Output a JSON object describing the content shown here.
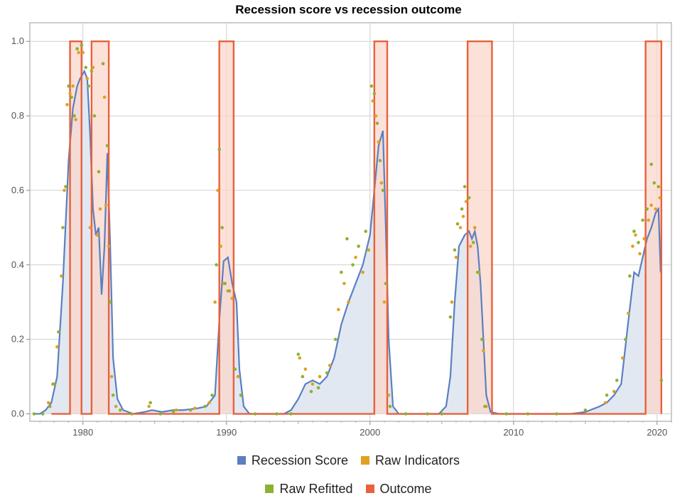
{
  "chart_data": {
    "type": "line",
    "title": "Recession score vs recession outcome",
    "xlabel": "",
    "ylabel": "",
    "xlim": [
      1976.3,
      2021.0
    ],
    "ylim": [
      -0.02,
      1.05
    ],
    "x_ticks": [
      1980,
      1990,
      2000,
      2010,
      2020
    ],
    "y_ticks": [
      0.0,
      0.2,
      0.4,
      0.6,
      0.8,
      1.0
    ],
    "x_tick_labels": [
      "1980",
      "1990",
      "2000",
      "2010",
      "2020"
    ],
    "y_tick_labels": [
      "0.0",
      "0.2",
      "0.4",
      "0.6",
      "0.8",
      "1.0"
    ],
    "grid": true,
    "legend_position": "bottom",
    "colors": {
      "score": "#5b7fc0",
      "score_fill": "#dfe5ef",
      "indicators": "#e0a020",
      "refitted": "#8db230",
      "outcome": "#e8613c",
      "outcome_fill": "#f9d7cb"
    },
    "legend": [
      [
        "Recession Score",
        "Raw Indicators"
      ],
      [
        "Raw Refitted",
        "Outcome"
      ]
    ],
    "series": [
      {
        "name": "Recession Score",
        "kind": "line-filled",
        "points": [
          [
            1976.6,
            0.0
          ],
          [
            1977.0,
            0.0
          ],
          [
            1977.4,
            0.01
          ],
          [
            1977.8,
            0.03
          ],
          [
            1978.2,
            0.1
          ],
          [
            1978.6,
            0.35
          ],
          [
            1979.0,
            0.68
          ],
          [
            1979.3,
            0.82
          ],
          [
            1979.6,
            0.88
          ],
          [
            1979.8,
            0.9
          ],
          [
            1980.1,
            0.92
          ],
          [
            1980.3,
            0.9
          ],
          [
            1980.5,
            0.75
          ],
          [
            1980.7,
            0.55
          ],
          [
            1980.9,
            0.48
          ],
          [
            1981.1,
            0.5
          ],
          [
            1981.3,
            0.32
          ],
          [
            1981.5,
            0.45
          ],
          [
            1981.7,
            0.7
          ],
          [
            1981.9,
            0.45
          ],
          [
            1982.1,
            0.15
          ],
          [
            1982.4,
            0.04
          ],
          [
            1982.8,
            0.01
          ],
          [
            1983.5,
            0.0
          ],
          [
            1984.3,
            0.005
          ],
          [
            1984.8,
            0.01
          ],
          [
            1985.5,
            0.005
          ],
          [
            1986.3,
            0.01
          ],
          [
            1987.0,
            0.01
          ],
          [
            1988.0,
            0.015
          ],
          [
            1988.6,
            0.02
          ],
          [
            1989.2,
            0.05
          ],
          [
            1989.5,
            0.25
          ],
          [
            1989.8,
            0.41
          ],
          [
            1990.1,
            0.42
          ],
          [
            1990.4,
            0.35
          ],
          [
            1990.7,
            0.3
          ],
          [
            1990.9,
            0.12
          ],
          [
            1991.2,
            0.02
          ],
          [
            1991.6,
            0.0
          ],
          [
            1993.0,
            0.0
          ],
          [
            1994.0,
            0.0
          ],
          [
            1994.5,
            0.01
          ],
          [
            1995.0,
            0.04
          ],
          [
            1995.5,
            0.08
          ],
          [
            1996.0,
            0.09
          ],
          [
            1996.5,
            0.08
          ],
          [
            1997.0,
            0.1
          ],
          [
            1997.5,
            0.15
          ],
          [
            1998.0,
            0.24
          ],
          [
            1998.5,
            0.3
          ],
          [
            1999.0,
            0.35
          ],
          [
            1999.5,
            0.4
          ],
          [
            2000.0,
            0.48
          ],
          [
            2000.3,
            0.6
          ],
          [
            2000.6,
            0.72
          ],
          [
            2000.9,
            0.76
          ],
          [
            2001.1,
            0.5
          ],
          [
            2001.3,
            0.2
          ],
          [
            2001.6,
            0.02
          ],
          [
            2002.0,
            0.0
          ],
          [
            2004.0,
            0.0
          ],
          [
            2004.8,
            0.0
          ],
          [
            2005.3,
            0.02
          ],
          [
            2005.6,
            0.1
          ],
          [
            2005.9,
            0.3
          ],
          [
            2006.2,
            0.45
          ],
          [
            2006.6,
            0.48
          ],
          [
            2006.9,
            0.49
          ],
          [
            2007.1,
            0.47
          ],
          [
            2007.3,
            0.49
          ],
          [
            2007.5,
            0.45
          ],
          [
            2007.7,
            0.35
          ],
          [
            2007.9,
            0.2
          ],
          [
            2008.1,
            0.05
          ],
          [
            2008.4,
            0.005
          ],
          [
            2009.0,
            0.0
          ],
          [
            2012.0,
            0.0
          ],
          [
            2014.0,
            0.0
          ],
          [
            2015.0,
            0.005
          ],
          [
            2016.0,
            0.02
          ],
          [
            2016.5,
            0.03
          ],
          [
            2017.0,
            0.05
          ],
          [
            2017.5,
            0.08
          ],
          [
            2018.0,
            0.25
          ],
          [
            2018.4,
            0.38
          ],
          [
            2018.7,
            0.37
          ],
          [
            2019.0,
            0.42
          ],
          [
            2019.3,
            0.47
          ],
          [
            2019.6,
            0.5
          ],
          [
            2019.9,
            0.54
          ],
          [
            2020.1,
            0.55
          ],
          [
            2020.25,
            0.38
          ]
        ]
      },
      {
        "name": "Raw Indicators",
        "kind": "points",
        "points": [
          [
            1977.6,
            0.03
          ],
          [
            1977.9,
            0.08
          ],
          [
            1978.2,
            0.18
          ],
          [
            1978.5,
            0.37
          ],
          [
            1978.7,
            0.6
          ],
          [
            1978.9,
            0.83
          ],
          [
            1979.1,
            0.86
          ],
          [
            1979.3,
            0.88
          ],
          [
            1979.5,
            0.79
          ],
          [
            1979.7,
            0.97
          ],
          [
            1980.0,
            0.97
          ],
          [
            1980.3,
            0.9
          ],
          [
            1980.5,
            0.5
          ],
          [
            1980.7,
            0.93
          ],
          [
            1981.0,
            0.48
          ],
          [
            1981.2,
            0.55
          ],
          [
            1981.5,
            0.85
          ],
          [
            1981.6,
            0.56
          ],
          [
            1981.8,
            0.45
          ],
          [
            1982.0,
            0.1
          ],
          [
            1982.3,
            0.02
          ],
          [
            1984.6,
            0.02
          ],
          [
            1986.5,
            0.01
          ],
          [
            1987.8,
            0.015
          ],
          [
            1988.8,
            0.03
          ],
          [
            1989.2,
            0.3
          ],
          [
            1989.4,
            0.6
          ],
          [
            1989.6,
            0.45
          ],
          [
            1989.8,
            0.35
          ],
          [
            1990.1,
            0.33
          ],
          [
            1990.4,
            0.31
          ],
          [
            1990.8,
            0.1
          ],
          [
            1995.1,
            0.15
          ],
          [
            1995.5,
            0.12
          ],
          [
            1996.0,
            0.08
          ],
          [
            1996.5,
            0.1
          ],
          [
            1997.2,
            0.13
          ],
          [
            1997.8,
            0.28
          ],
          [
            1998.2,
            0.35
          ],
          [
            1998.5,
            0.3
          ],
          [
            1999.0,
            0.42
          ],
          [
            1999.5,
            0.38
          ],
          [
            1999.9,
            0.44
          ],
          [
            2000.2,
            0.84
          ],
          [
            2000.4,
            0.8
          ],
          [
            2000.6,
            0.73
          ],
          [
            2000.8,
            0.62
          ],
          [
            2001.0,
            0.3
          ],
          [
            2001.3,
            0.05
          ],
          [
            2005.7,
            0.3
          ],
          [
            2006.0,
            0.42
          ],
          [
            2006.3,
            0.5
          ],
          [
            2006.5,
            0.53
          ],
          [
            2006.7,
            0.57
          ],
          [
            2007.0,
            0.45
          ],
          [
            2007.3,
            0.5
          ],
          [
            2007.6,
            0.38
          ],
          [
            2007.9,
            0.17
          ],
          [
            2008.1,
            0.02
          ],
          [
            2016.4,
            0.03
          ],
          [
            2017.0,
            0.06
          ],
          [
            2017.6,
            0.15
          ],
          [
            2018.0,
            0.27
          ],
          [
            2018.3,
            0.45
          ],
          [
            2018.5,
            0.48
          ],
          [
            2018.8,
            0.43
          ],
          [
            2019.1,
            0.47
          ],
          [
            2019.4,
            0.52
          ],
          [
            2019.6,
            0.56
          ],
          [
            2019.9,
            0.55
          ],
          [
            2020.2,
            0.58
          ]
        ]
      },
      {
        "name": "Raw Refitted",
        "kind": "points",
        "points": [
          [
            1976.6,
            0.0
          ],
          [
            1977.2,
            0.0
          ],
          [
            1977.7,
            0.02
          ],
          [
            1978.0,
            0.08
          ],
          [
            1978.3,
            0.22
          ],
          [
            1978.6,
            0.5
          ],
          [
            1978.8,
            0.61
          ],
          [
            1979.0,
            0.88
          ],
          [
            1979.2,
            0.85
          ],
          [
            1979.4,
            0.8
          ],
          [
            1979.6,
            0.98
          ],
          [
            1979.9,
            0.99
          ],
          [
            1980.2,
            0.93
          ],
          [
            1980.4,
            0.88
          ],
          [
            1980.6,
            0.92
          ],
          [
            1980.8,
            0.8
          ],
          [
            1981.1,
            0.65
          ],
          [
            1981.4,
            0.94
          ],
          [
            1981.7,
            0.72
          ],
          [
            1981.9,
            0.3
          ],
          [
            1982.1,
            0.05
          ],
          [
            1982.6,
            0.01
          ],
          [
            1983.4,
            0.0
          ],
          [
            1984.7,
            0.03
          ],
          [
            1985.4,
            0.0
          ],
          [
            1986.3,
            0.005
          ],
          [
            1987.5,
            0.01
          ],
          [
            1988.5,
            0.02
          ],
          [
            1989.0,
            0.05
          ],
          [
            1989.3,
            0.4
          ],
          [
            1989.5,
            0.71
          ],
          [
            1989.7,
            0.5
          ],
          [
            1989.9,
            0.35
          ],
          [
            1990.2,
            0.33
          ],
          [
            1990.6,
            0.12
          ],
          [
            1991.0,
            0.05
          ],
          [
            1992.0,
            0.0
          ],
          [
            1993.5,
            0.0
          ],
          [
            1994.5,
            0.0
          ],
          [
            1995.0,
            0.16
          ],
          [
            1995.3,
            0.1
          ],
          [
            1995.9,
            0.06
          ],
          [
            1996.4,
            0.07
          ],
          [
            1997.0,
            0.11
          ],
          [
            1997.6,
            0.2
          ],
          [
            1998.0,
            0.38
          ],
          [
            1998.4,
            0.47
          ],
          [
            1998.8,
            0.4
          ],
          [
            1999.2,
            0.45
          ],
          [
            1999.7,
            0.49
          ],
          [
            2000.1,
            0.88
          ],
          [
            2000.3,
            0.86
          ],
          [
            2000.5,
            0.78
          ],
          [
            2000.7,
            0.68
          ],
          [
            2000.9,
            0.6
          ],
          [
            2001.1,
            0.35
          ],
          [
            2001.4,
            0.02
          ],
          [
            2002.5,
            0.0
          ],
          [
            2004.0,
            0.0
          ],
          [
            2005.0,
            0.0
          ],
          [
            2005.6,
            0.26
          ],
          [
            2005.9,
            0.44
          ],
          [
            2006.1,
            0.51
          ],
          [
            2006.4,
            0.55
          ],
          [
            2006.6,
            0.61
          ],
          [
            2006.9,
            0.58
          ],
          [
            2007.2,
            0.46
          ],
          [
            2007.5,
            0.38
          ],
          [
            2007.8,
            0.2
          ],
          [
            2008.0,
            0.02
          ],
          [
            2009.5,
            0.0
          ],
          [
            2011.0,
            0.0
          ],
          [
            2013.0,
            0.0
          ],
          [
            2015.0,
            0.01
          ],
          [
            2016.5,
            0.05
          ],
          [
            2017.2,
            0.09
          ],
          [
            2017.8,
            0.2
          ],
          [
            2018.1,
            0.37
          ],
          [
            2018.4,
            0.49
          ],
          [
            2018.7,
            0.46
          ],
          [
            2019.0,
            0.52
          ],
          [
            2019.3,
            0.55
          ],
          [
            2019.6,
            0.67
          ],
          [
            2019.8,
            0.62
          ],
          [
            2020.1,
            0.61
          ],
          [
            2020.3,
            0.09
          ]
        ]
      },
      {
        "name": "Outcome",
        "kind": "step",
        "start": 1977.8,
        "end": 2020.3,
        "intervals": [
          [
            1979.1,
            1979.9
          ],
          [
            1980.6,
            1981.8
          ],
          [
            1989.5,
            1990.5
          ],
          [
            2000.3,
            2001.2
          ],
          [
            2006.8,
            2008.5
          ],
          [
            2019.2,
            2020.3
          ]
        ]
      }
    ]
  }
}
